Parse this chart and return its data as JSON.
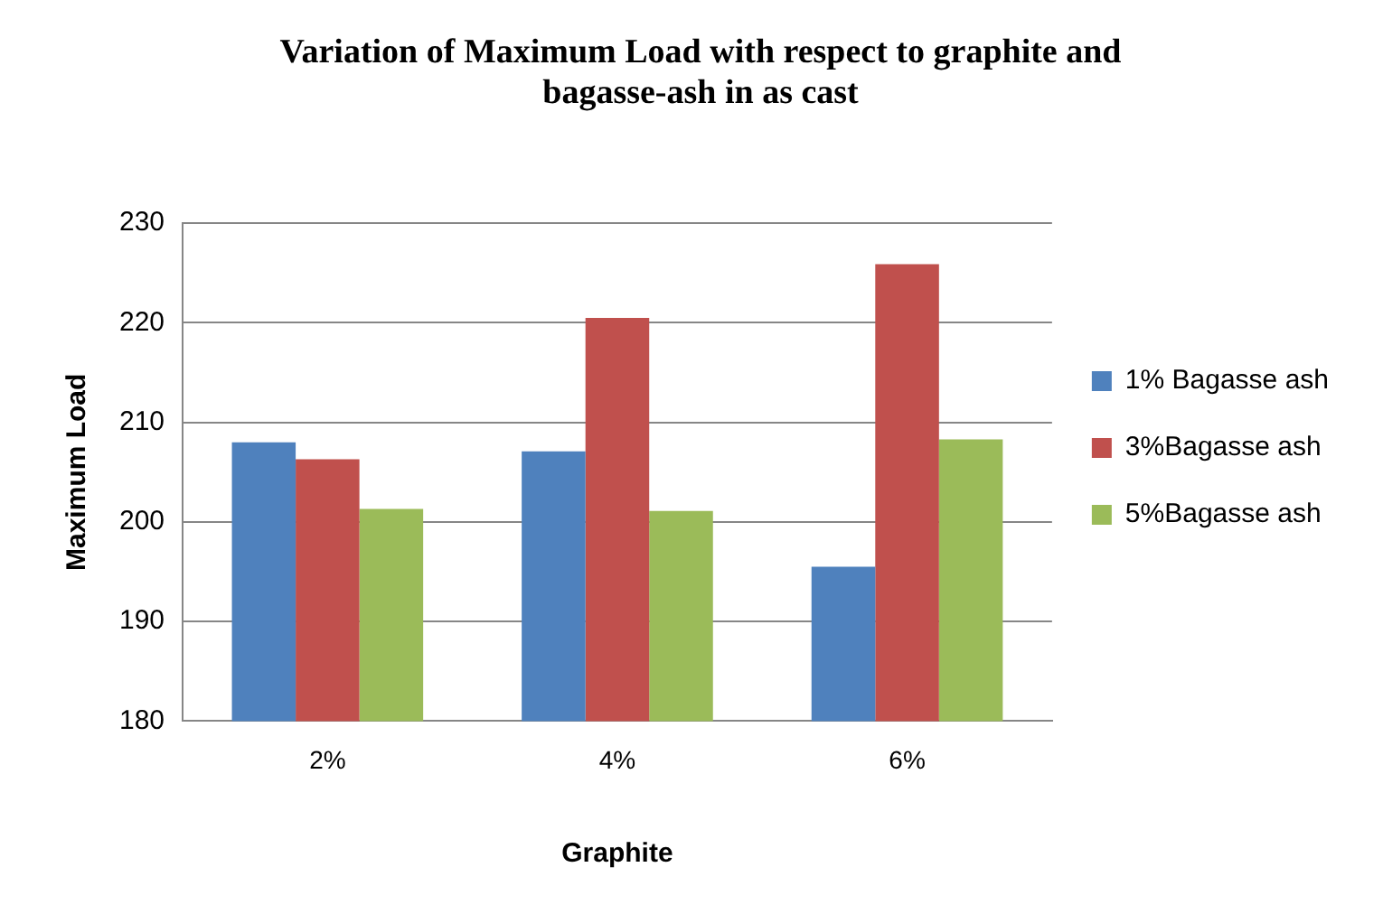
{
  "chart_data": {
    "type": "bar",
    "title": "Variation of Maximum Load with respect to graphite and bagasse-ash in as cast",
    "xlabel": "Graphite",
    "ylabel": "Maximum Load",
    "categories": [
      "2%",
      "4%",
      "6%"
    ],
    "series": [
      {
        "name": "1% Bagasse ash",
        "color": "#4f81bd",
        "values": [
          208.0,
          207.1,
          195.5
        ]
      },
      {
        "name": "3%Bagasse ash",
        "color": "#c0504d",
        "values": [
          206.3,
          220.5,
          225.9
        ]
      },
      {
        "name": "5%Bagasse ash",
        "color": "#9bbb59",
        "values": [
          201.3,
          201.1,
          208.3
        ]
      }
    ],
    "ylim": [
      180,
      230
    ],
    "yticks": [
      180,
      190,
      200,
      210,
      220,
      230
    ],
    "grid": "y",
    "legend": "right"
  }
}
